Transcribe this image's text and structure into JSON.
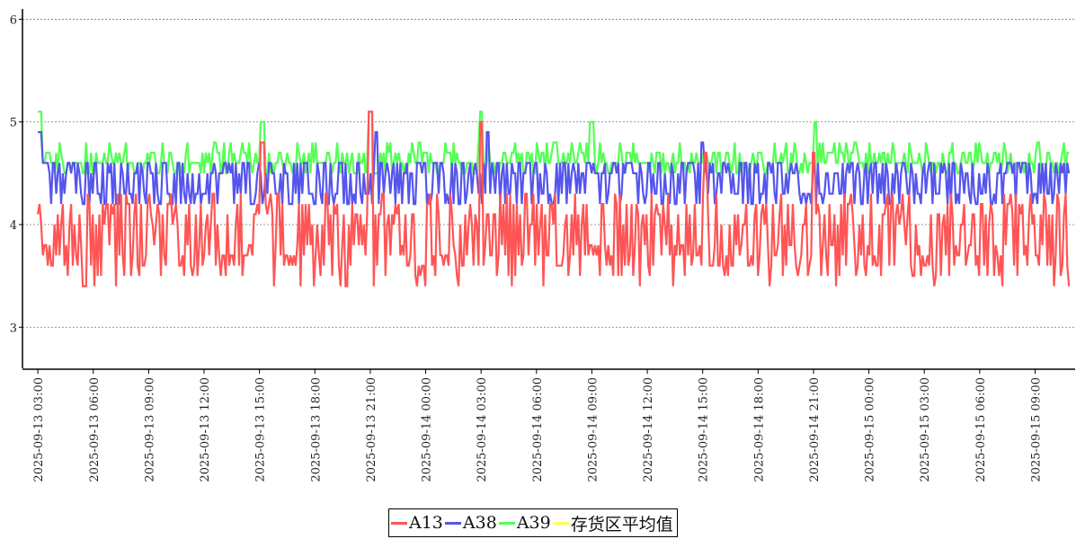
{
  "chart_data": {
    "type": "line",
    "title": "",
    "xlabel": "",
    "ylabel": "",
    "ylim": [
      2.6,
      6.1
    ],
    "yticks": [
      3,
      4,
      5,
      6
    ],
    "grid": "horizontal-dotted",
    "legend_placement": "bottom-center",
    "x_start": "2025-09-13 02:10",
    "x_end": "2025-09-15 11:10",
    "xticks": [
      "2025-09-13 03:00",
      "2025-09-13 06:00",
      "2025-09-13 09:00",
      "2025-09-13 12:00",
      "2025-09-13 15:00",
      "2025-09-13 18:00",
      "2025-09-13 21:00",
      "2025-09-14 00:00",
      "2025-09-14 03:00",
      "2025-09-14 06:00",
      "2025-09-14 09:00",
      "2025-09-14 12:00",
      "2025-09-14 15:00",
      "2025-09-14 18:00",
      "2025-09-14 21:00",
      "2025-09-15 00:00",
      "2025-09-15 03:00",
      "2025-09-15 06:00",
      "2025-09-15 09:00"
    ],
    "series": [
      {
        "name": "A39",
        "color": "#55ff55",
        "x_range": [
          "2025-09-13 03:00",
          "2025-09-15 10:50"
        ],
        "band_low": 4.5,
        "band_high": 4.7,
        "peak": 4.8,
        "spikes": [
          {
            "x": "2025-09-13 03:05",
            "y": 5.1
          },
          {
            "x": "2025-09-13 15:10",
            "y": 5.0
          },
          {
            "x": "2025-09-13 21:00",
            "y": 5.1
          },
          {
            "x": "2025-09-14 03:00",
            "y": 5.1
          },
          {
            "x": "2025-09-14 09:00",
            "y": 5.0
          },
          {
            "x": "2025-09-14 21:05",
            "y": 5.0
          }
        ]
      },
      {
        "name": "A38",
        "color": "#5555ee",
        "x_range": [
          "2025-09-13 03:00",
          "2025-09-15 10:50"
        ],
        "band_low": 4.2,
        "band_high": 4.6,
        "peak": 4.6,
        "spikes": [
          {
            "x": "2025-09-13 03:05",
            "y": 4.9
          },
          {
            "x": "2025-09-13 21:20",
            "y": 4.9
          },
          {
            "x": "2025-09-14 03:20",
            "y": 4.9
          },
          {
            "x": "2025-09-14 15:00",
            "y": 4.8
          }
        ]
      },
      {
        "name": "A13",
        "color": "#ff5555",
        "x_range": [
          "2025-09-13 03:00",
          "2025-09-15 10:50"
        ],
        "band_low": 3.5,
        "band_high": 4.3,
        "floor": 3.4,
        "spikes": [
          {
            "x": "2025-09-13 15:10",
            "y": 4.8
          },
          {
            "x": "2025-09-13 21:00",
            "y": 5.1
          },
          {
            "x": "2025-09-14 03:00",
            "y": 5.0
          },
          {
            "x": "2025-09-14 15:10",
            "y": 4.7
          },
          {
            "x": "2025-09-14 21:00",
            "y": 4.7
          }
        ]
      },
      {
        "name": "存货区平均值",
        "color": "#ffff55",
        "x_range": [
          "2025-09-13 03:00",
          "2025-09-15 10:50"
        ],
        "values_note": ""
      }
    ]
  },
  "legend": {
    "items": [
      {
        "label": "A13",
        "color": "#ff5555"
      },
      {
        "label": "A38",
        "color": "#5555ee"
      },
      {
        "label": "A39",
        "color": "#55ff55"
      },
      {
        "label": "存货区平均值",
        "color": "#ffff55"
      }
    ]
  }
}
